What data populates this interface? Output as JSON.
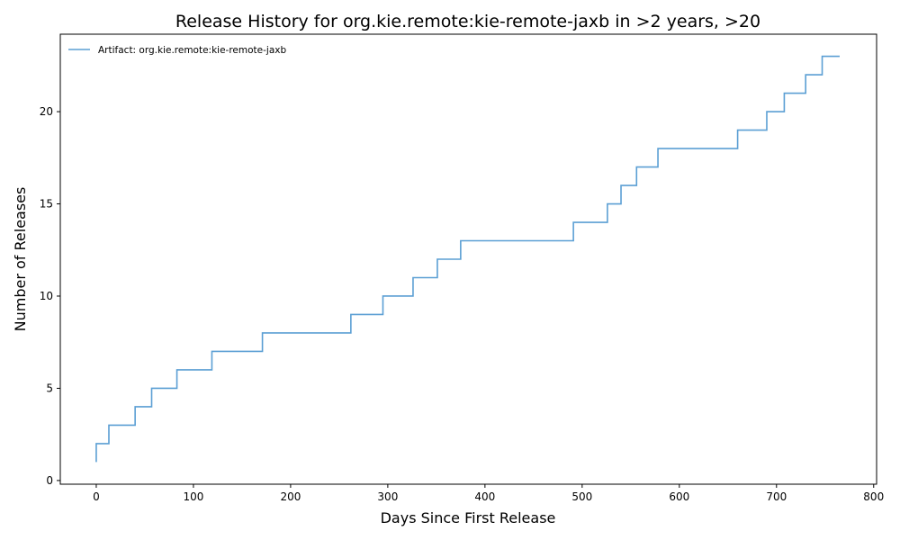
{
  "chart_data": {
    "type": "line",
    "drawstyle": "steps-post",
    "title": "Release History for org.kie.remote:kie-remote-jaxb in >2 years, >20",
    "xlabel": "Days Since First Release",
    "ylabel": "Number of Releases",
    "xlim": [
      -37,
      803
    ],
    "ylim": [
      -0.2,
      24.2
    ],
    "xticks": [
      0,
      100,
      200,
      300,
      400,
      500,
      600,
      700,
      800
    ],
    "yticks": [
      0,
      5,
      10,
      15,
      20
    ],
    "grid": false,
    "legend_position": "top-left",
    "series": [
      {
        "name": "Artifact: org.kie.remote:kie-remote-jaxb",
        "color": "#5b9fd4",
        "x": [
          0,
          0,
          13,
          40,
          57,
          83,
          119,
          171,
          262,
          295,
          326,
          351,
          375,
          491,
          526,
          540,
          556,
          578,
          660,
          690,
          708,
          730,
          747,
          765
        ],
        "y": [
          1,
          2,
          3,
          4,
          5,
          6,
          7,
          8,
          9,
          10,
          11,
          12,
          13,
          14,
          15,
          16,
          17,
          18,
          19,
          20,
          21,
          22,
          23,
          23
        ]
      }
    ]
  }
}
